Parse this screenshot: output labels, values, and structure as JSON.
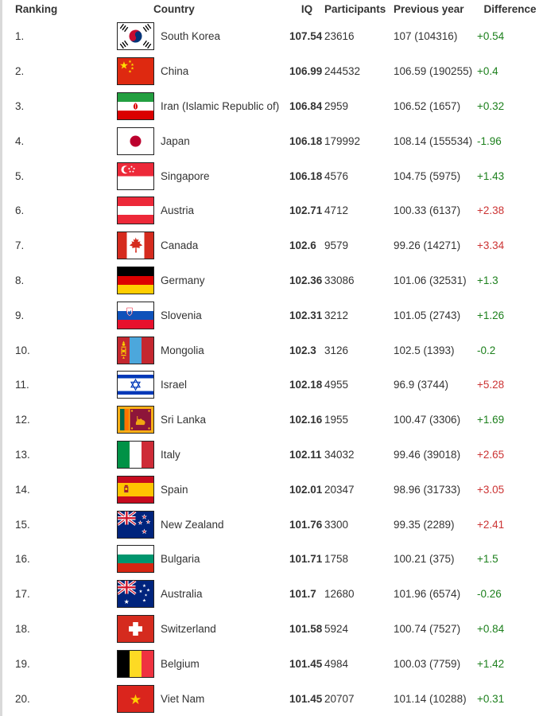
{
  "table": {
    "columns": [
      "Ranking",
      "Country",
      "IQ",
      "Participants",
      "Previous year",
      "Difference"
    ],
    "rows": [
      {
        "rank": "1.",
        "country": "South Korea",
        "flag": "south-korea",
        "iq": "107.54",
        "participants": "23616",
        "previous_year": "107 (104316)",
        "difference": "+0.54",
        "diff_color": "green"
      },
      {
        "rank": "2.",
        "country": "China",
        "flag": "china",
        "iq": "106.99",
        "participants": "244532",
        "previous_year": "106.59 (190255)",
        "difference": "+0.4",
        "diff_color": "green"
      },
      {
        "rank": "3.",
        "country": "Iran (Islamic Republic of)",
        "flag": "iran",
        "iq": "106.84",
        "participants": "2959",
        "previous_year": "106.52 (1657)",
        "difference": "+0.32",
        "diff_color": "green"
      },
      {
        "rank": "4.",
        "country": "Japan",
        "flag": "japan",
        "iq": "106.18",
        "participants": "179992",
        "previous_year": "108.14 (155534)",
        "difference": "-1.96",
        "diff_color": "green"
      },
      {
        "rank": "5.",
        "country": "Singapore",
        "flag": "singapore",
        "iq": "106.18",
        "participants": "4576",
        "previous_year": "104.75 (5975)",
        "difference": "+1.43",
        "diff_color": "green"
      },
      {
        "rank": "6.",
        "country": "Austria",
        "flag": "austria",
        "iq": "102.71",
        "participants": "4712",
        "previous_year": "100.33 (6137)",
        "difference": "+2.38",
        "diff_color": "red"
      },
      {
        "rank": "7.",
        "country": "Canada",
        "flag": "canada",
        "iq": "102.6",
        "participants": "9579",
        "previous_year": "99.26 (14271)",
        "difference": "+3.34",
        "diff_color": "red"
      },
      {
        "rank": "8.",
        "country": "Germany",
        "flag": "germany",
        "iq": "102.36",
        "participants": "33086",
        "previous_year": "101.06 (32531)",
        "difference": "+1.3",
        "diff_color": "green"
      },
      {
        "rank": "9.",
        "country": "Slovenia",
        "flag": "slovenia",
        "iq": "102.31",
        "participants": "3212",
        "previous_year": "101.05 (2743)",
        "difference": "+1.26",
        "diff_color": "green"
      },
      {
        "rank": "10.",
        "country": "Mongolia",
        "flag": "mongolia",
        "iq": "102.3",
        "participants": "3126",
        "previous_year": "102.5 (1393)",
        "difference": "-0.2",
        "diff_color": "green"
      },
      {
        "rank": "11.",
        "country": "Israel",
        "flag": "israel",
        "iq": "102.18",
        "participants": "4955",
        "previous_year": "96.9 (3744)",
        "difference": "+5.28",
        "diff_color": "red"
      },
      {
        "rank": "12.",
        "country": "Sri Lanka",
        "flag": "sri-lanka",
        "iq": "102.16",
        "participants": "1955",
        "previous_year": "100.47 (3306)",
        "difference": "+1.69",
        "diff_color": "green"
      },
      {
        "rank": "13.",
        "country": "Italy",
        "flag": "italy",
        "iq": "102.11",
        "participants": "34032",
        "previous_year": "99.46 (39018)",
        "difference": "+2.65",
        "diff_color": "red"
      },
      {
        "rank": "14.",
        "country": "Spain",
        "flag": "spain",
        "iq": "102.01",
        "participants": "20347",
        "previous_year": "98.96 (31733)",
        "difference": "+3.05",
        "diff_color": "red"
      },
      {
        "rank": "15.",
        "country": "New Zealand",
        "flag": "new-zealand",
        "iq": "101.76",
        "participants": "3300",
        "previous_year": "99.35 (2289)",
        "difference": "+2.41",
        "diff_color": "red"
      },
      {
        "rank": "16.",
        "country": "Bulgaria",
        "flag": "bulgaria",
        "iq": "101.71",
        "participants": "1758",
        "previous_year": "100.21 (375)",
        "difference": "+1.5",
        "diff_color": "green"
      },
      {
        "rank": "17.",
        "country": "Australia",
        "flag": "australia",
        "iq": "101.7",
        "participants": "12680",
        "previous_year": "101.96 (6574)",
        "difference": "-0.26",
        "diff_color": "green"
      },
      {
        "rank": "18.",
        "country": "Switzerland",
        "flag": "switzerland",
        "iq": "101.58",
        "participants": "5924",
        "previous_year": "100.74 (7527)",
        "difference": "+0.84",
        "diff_color": "green"
      },
      {
        "rank": "19.",
        "country": "Belgium",
        "flag": "belgium",
        "iq": "101.45",
        "participants": "4984",
        "previous_year": "100.03 (7759)",
        "difference": "+1.42",
        "diff_color": "green"
      },
      {
        "rank": "20.",
        "country": "Viet Nam",
        "flag": "viet-nam",
        "iq": "101.45",
        "participants": "20707",
        "previous_year": "101.14 (10288)",
        "difference": "+0.31",
        "diff_color": "green"
      }
    ]
  },
  "colors": {
    "diff_green": "#1d801d",
    "diff_red": "#cc3333",
    "text": "#333333",
    "left_bar": "#d9d9d9"
  }
}
